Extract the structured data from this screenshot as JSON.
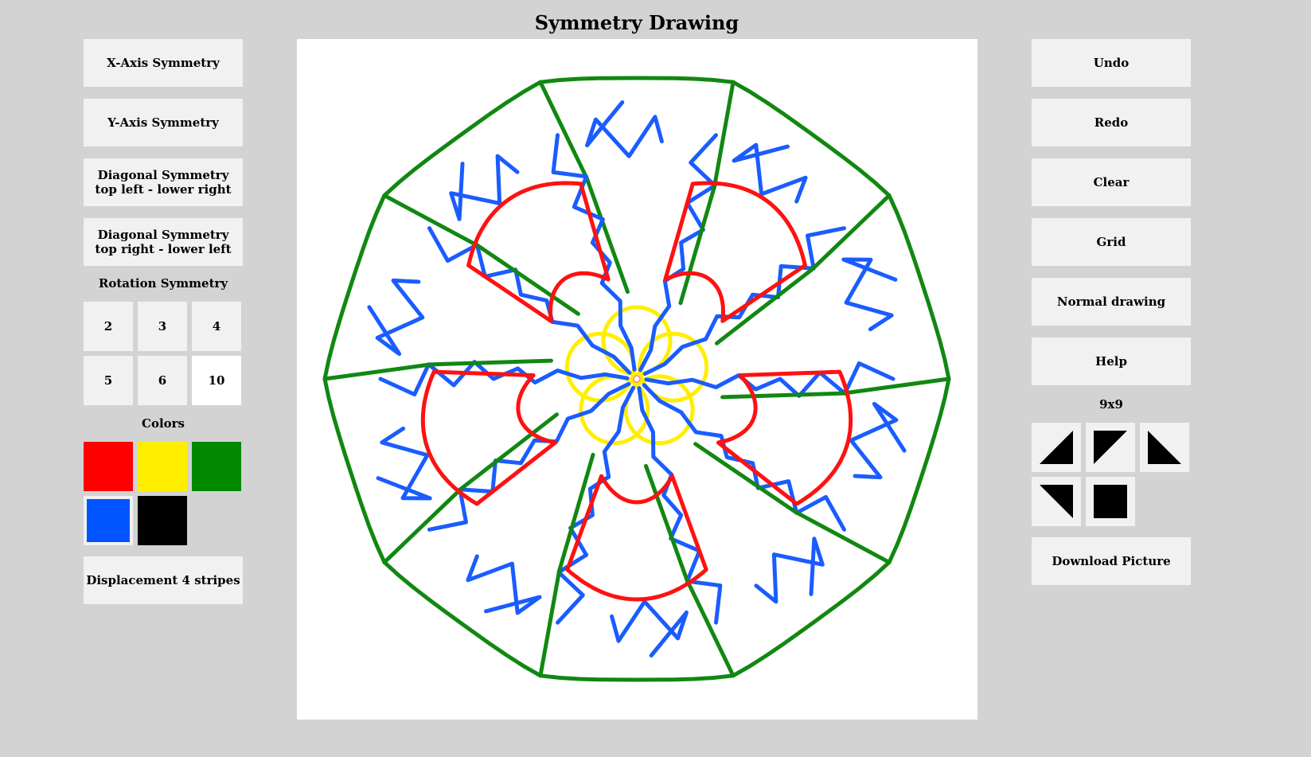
{
  "title": "Symmetry Drawing",
  "left_panel": {
    "buttons": [
      "X-Axis Symmetry",
      "Y-Axis Symmetry",
      "Diagonal Symmetry\ntop left - lower right",
      "Diagonal Symmetry\ntop right - lower left"
    ],
    "rotation_label": "Rotation Symmetry",
    "rotation_options": [
      "2",
      "3",
      "4",
      "5",
      "6",
      "10"
    ],
    "rotation_selected": "10",
    "colors_label": "Colors",
    "colors": [
      {
        "name": "red",
        "hex": "#ff0000"
      },
      {
        "name": "yellow",
        "hex": "#ffee00"
      },
      {
        "name": "green",
        "hex": "#008800"
      },
      {
        "name": "blue",
        "hex": "#0055ff"
      },
      {
        "name": "black",
        "hex": "#000000"
      }
    ],
    "selected_color": "blue",
    "displacement_button": "Displacement 4 stripes"
  },
  "right_panel": {
    "buttons": [
      "Undo",
      "Redo",
      "Clear",
      "Grid",
      "Normal drawing",
      "Help"
    ],
    "grid_size_label": "9x9",
    "shape_tiles": [
      "triangle-lower-left-icon",
      "triangle-upper-left-icon",
      "triangle-lower-right-icon",
      "triangle-upper-right-icon",
      "square-icon"
    ],
    "download_button": "Download Picture"
  },
  "drawing": {
    "rotation_order": 10,
    "stroke_colors": {
      "green": "#118811",
      "red": "#ff1111",
      "blue": "#1a5cff",
      "yellow": "#ffee00"
    }
  }
}
